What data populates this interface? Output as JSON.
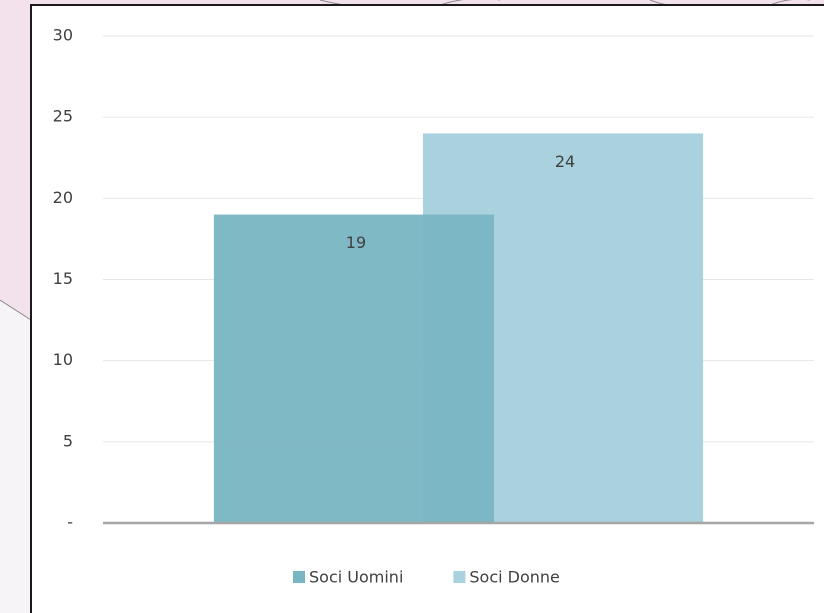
{
  "chart_data": {
    "type": "bar",
    "categories": [
      null
    ],
    "series": [
      {
        "name": "Soci Uomini",
        "color": "#79b5c3",
        "values": [
          19
        ]
      },
      {
        "name": "Soci Donne",
        "color": "#a9d2de",
        "values": [
          24
        ]
      }
    ],
    "ylim": [
      0,
      30
    ],
    "yticks": [
      {
        "value": 0,
        "label": "-"
      },
      5,
      10,
      15,
      20,
      25,
      30
    ],
    "grid": true,
    "legend": "bottom"
  }
}
